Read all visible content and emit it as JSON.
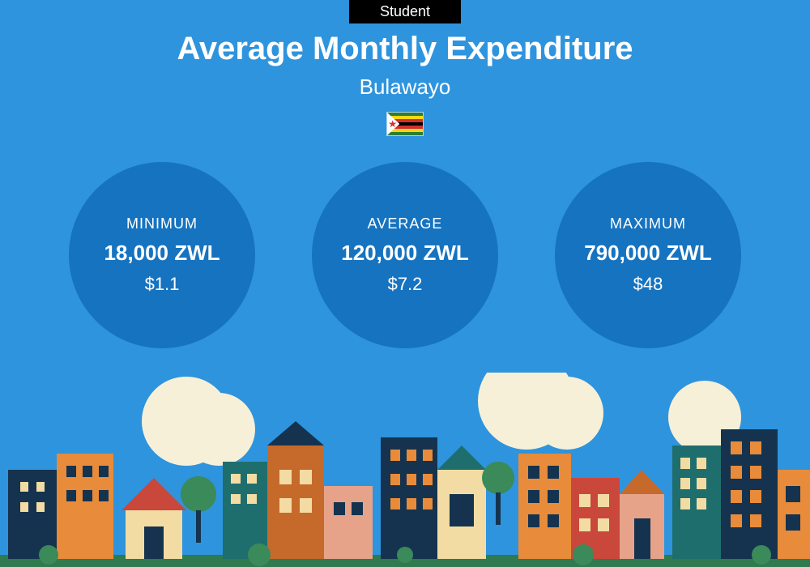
{
  "background_color": "#2e94de",
  "badge": {
    "text": "Student",
    "bg": "#000000",
    "fg": "#ffffff"
  },
  "title": "Average Monthly Expenditure",
  "subtitle": "Bulawayo",
  "flag": {
    "country": "Zimbabwe",
    "stripes": [
      "#2e7d32",
      "#f9d616",
      "#d32f2f",
      "#000000",
      "#d32f2f",
      "#f9d616",
      "#2e7d32"
    ],
    "triangle_fill": "#ffffff",
    "bird_color": "#d4a017"
  },
  "circles": {
    "fill": "#1673c0",
    "items": [
      {
        "label": "MINIMUM",
        "value": "18,000 ZWL",
        "usd": "$1.1"
      },
      {
        "label": "AVERAGE",
        "value": "120,000 ZWL",
        "usd": "$7.2"
      },
      {
        "label": "MAXIMUM",
        "value": "790,000 ZWL",
        "usd": "$48"
      }
    ]
  },
  "cityscape": {
    "ground_color": "#2f7a4f",
    "cloud_color": "#f7f0d8",
    "palette": {
      "orange": "#e88b3a",
      "cream": "#f3dca3",
      "teal": "#1f6e6e",
      "navy": "#15334f",
      "red": "#c9483b",
      "salmon": "#e6a38a",
      "dkorange": "#c56a2b",
      "green": "#3a8a5a"
    }
  }
}
